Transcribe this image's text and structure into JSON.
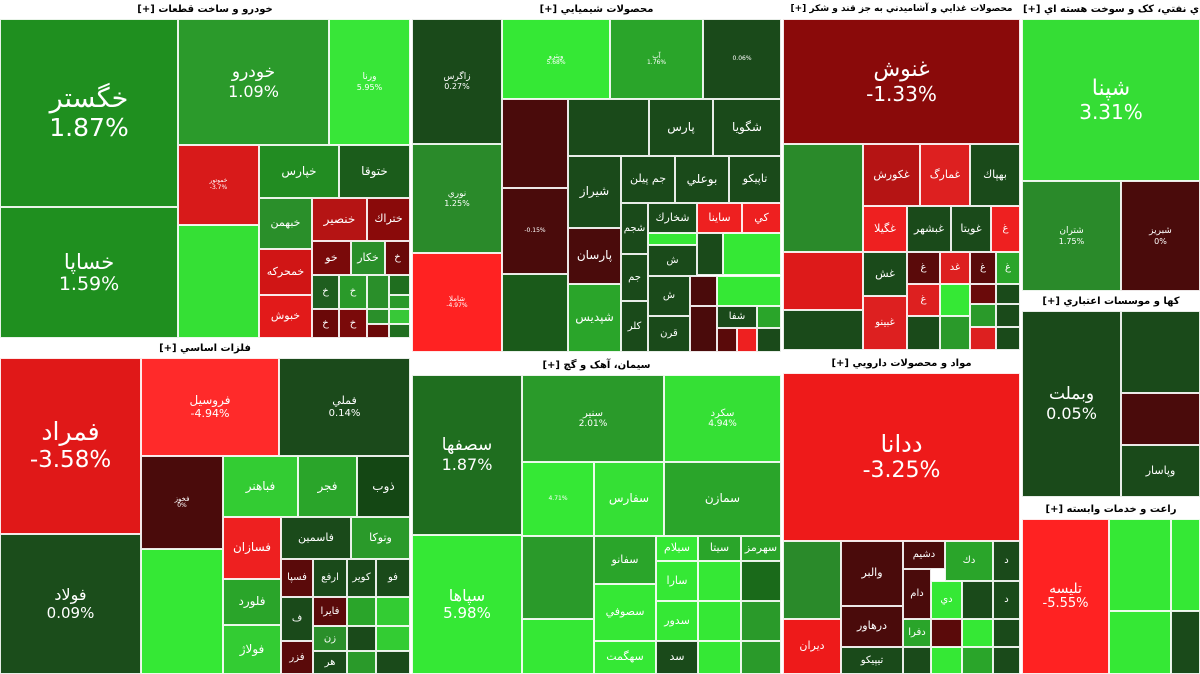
{
  "chart_data": {
    "type": "heatmap",
    "sectors": [
      {
        "title": "خودرو و ساخت قطعات",
        "expand": "[+]",
        "tiles": [
          {
            "name": "خگستر",
            "change": "1.87%",
            "color": "#1f8f1f"
          },
          {
            "name": "خساپا",
            "change": "1.59%",
            "color": "#1f8f1f"
          },
          {
            "name": "خودرو",
            "change": "1.09%",
            "color": "#2b9a2b"
          },
          {
            "name": "ورنا",
            "change": "5.95%",
            "color": "#38e638"
          },
          {
            "name": "خموتور",
            "change": "-3.7%",
            "color": "#d81a1a"
          },
          {
            "name": "خپارس",
            "color": "#228c22"
          },
          {
            "name": "ختوقا",
            "color": "#1b5c1b"
          },
          {
            "name": "خبهمن",
            "color": "#2a8f2a"
          },
          {
            "name": "خنصير",
            "color": "#b51414"
          },
          {
            "name": "ختراك",
            "color": "#8a0a0a"
          },
          {
            "color": "#35e035"
          },
          {
            "name": "خمحركه",
            "color": "#d01515"
          },
          {
            "name": "خو",
            "color": "#7a0a0a"
          },
          {
            "name": "خكار",
            "color": "#2a8f2a"
          },
          {
            "name": "خ",
            "color": "#6a0808"
          },
          {
            "name": "خبوش",
            "color": "#e21a1a"
          },
          {
            "name": "خ",
            "color": "#1f5e1f"
          },
          {
            "name": "خ",
            "color": "#2a9a2a"
          },
          {
            "color": "#2a8f2a"
          },
          {
            "color": "#1f6e1f"
          },
          {
            "color": "#2a9a2a"
          },
          {
            "name": "خ",
            "color": "#6a0808"
          },
          {
            "name": "خ",
            "color": "#7a0a0a"
          },
          {
            "color": "#2a8f2a"
          },
          {
            "color": "#38c838"
          },
          {
            "color": "#6a0808"
          },
          {
            "color": "#1f6e1f"
          }
        ]
      },
      {
        "title": "فلزات اساسي",
        "expand": "[+]",
        "tiles": [
          {
            "name": "فمراد",
            "change": "-3.58%",
            "color": "#e01818"
          },
          {
            "name": "فولاد",
            "change": "0.09%",
            "color": "#1b4d1b"
          },
          {
            "name": "فروسيل",
            "change": "-4.94%",
            "color": "#ff2a2a"
          },
          {
            "name": "فملي",
            "change": "0.14%",
            "color": "#1b4a1b"
          },
          {
            "name": "فخوز",
            "change": "0%",
            "color": "#4a0b0b"
          },
          {
            "name": "فباهنر",
            "color": "#33cc33"
          },
          {
            "name": "فجر",
            "color": "#2aa52a"
          },
          {
            "name": "ذوب",
            "color": "#144714"
          },
          {
            "name": "فسازان",
            "color": "#ee2020"
          },
          {
            "name": "فاسمين",
            "color": "#1a4a1a"
          },
          {
            "name": "وتوكا",
            "color": "#2a9a2a"
          },
          {
            "color": "#35e835"
          },
          {
            "name": "فلورد",
            "color": "#2aa52a"
          },
          {
            "name": "فولاژ",
            "color": "#33cc33"
          },
          {
            "name": "فسپا",
            "color": "#5a0a0a"
          },
          {
            "name": "ارفع",
            "color": "#1a4a1a"
          },
          {
            "name": "كوير",
            "color": "#1a4a1a"
          },
          {
            "name": "فو",
            "color": "#1a4a1a"
          },
          {
            "name": "ف",
            "color": "#1a4a1a"
          },
          {
            "name": "فايرا",
            "color": "#5a0a0a"
          },
          {
            "color": "#2aa52a"
          },
          {
            "color": "#33cc33"
          },
          {
            "name": "زن",
            "color": "#2a8f2a"
          },
          {
            "color": "#1a4a1a"
          },
          {
            "color": "#33cc33"
          },
          {
            "name": "فزر",
            "color": "#5a0a0a"
          },
          {
            "name": "هر",
            "color": "#1a4a1a"
          },
          {
            "color": "#2a9a2a"
          },
          {
            "color": "#1a4a1a"
          }
        ]
      },
      {
        "title": "محصولات شيميايي",
        "expand": "[+]",
        "tiles": [
          {
            "name": "زاگرس",
            "change": "0.27%",
            "color": "#1a4a1a"
          },
          {
            "name": "نوري",
            "change": "1.25%",
            "color": "#2a8a2a"
          },
          {
            "name": "شاملا",
            "change": "-4.97%",
            "color": "#ff2222"
          },
          {
            "name": "وپترو",
            "change": "5.68%",
            "color": "#35e835"
          },
          {
            "name": "آپ",
            "change": "1.76%",
            "color": "#2aa52a"
          },
          {
            "change": "0.06%",
            "color": "#1a4a1a"
          },
          {
            "color": "#4a0b0b"
          },
          {
            "color": "#1a4a1a"
          },
          {
            "name": "پارس",
            "color": "#1a4a1a"
          },
          {
            "name": "شگويا",
            "color": "#1a4a1a"
          },
          {
            "name": "شيراز",
            "color": "#1a4a1a"
          },
          {
            "name": "جم پيلن",
            "color": "#1a4a1a"
          },
          {
            "name": "بوعلي",
            "color": "#1a4a1a"
          },
          {
            "name": "تاپيكو",
            "color": "#1a4a1a"
          },
          {
            "change": "-0.15%",
            "color": "#4a0b0b"
          },
          {
            "name": "شجم",
            "color": "#1a4a1a"
          },
          {
            "name": "شخارك",
            "color": "#1a4a1a"
          },
          {
            "name": "ساينا",
            "color": "#ee2020"
          },
          {
            "name": "كي",
            "color": "#ee2020"
          },
          {
            "name": "پارسان",
            "color": "#4a0b0b"
          },
          {
            "color": "#35e835"
          },
          {
            "color": "#1a4a1a"
          },
          {
            "color": "#35e835"
          },
          {
            "name": "ش",
            "color": "#1a4a1a"
          },
          {
            "name": "جم",
            "color": "#1a4a1a"
          },
          {
            "color": "#1a5a1a"
          },
          {
            "name": "شپديس",
            "color": "#2aa52a"
          },
          {
            "name": "ش",
            "color": "#1a4a1a"
          },
          {
            "color": "#4a0b0b"
          },
          {
            "color": "#35e835"
          },
          {
            "name": "كلر",
            "color": "#1a4a1a"
          },
          {
            "name": "قرن",
            "color": "#1a4a1a"
          },
          {
            "color": "#4a0b0b"
          },
          {
            "name": "شفا",
            "color": "#1a4a1a"
          },
          {
            "color": "#2aa52a"
          },
          {
            "color": "#5a0a0a"
          },
          {
            "color": "#ee2020"
          },
          {
            "color": "#1a4a1a"
          }
        ]
      },
      {
        "title": "سيمان، آهک و گچ",
        "expand": "[+]",
        "tiles": [
          {
            "name": "سصفها",
            "change": "1.87%",
            "color": "#1f6e1f"
          },
          {
            "name": "سپاها",
            "change": "5.98%",
            "color": "#35e835"
          },
          {
            "name": "سنير",
            "change": "2.01%",
            "color": "#2a9a2a"
          },
          {
            "name": "سكرد",
            "change": "4.94%",
            "color": "#35e035"
          },
          {
            "change": "4.71%",
            "color": "#35e835"
          },
          {
            "name": "سفارس",
            "color": "#35e035"
          },
          {
            "name": "سمازن",
            "color": "#2aa52a"
          },
          {
            "color": "#2a9a2a"
          },
          {
            "name": "سفانو",
            "color": "#2aa52a"
          },
          {
            "name": "سيلام",
            "color": "#35e835"
          },
          {
            "name": "سيتا",
            "color": "#2aa52a"
          },
          {
            "name": "سهرمز",
            "color": "#2aa52a"
          },
          {
            "name": "سارا",
            "color": "#35e835"
          },
          {
            "color": "#35e835"
          },
          {
            "color": "#1a6a1a"
          },
          {
            "name": "سصوفي",
            "color": "#35e835"
          },
          {
            "name": "سدور",
            "color": "#35e835"
          },
          {
            "color": "#35e835"
          },
          {
            "color": "#2a9a2a"
          },
          {
            "color": "#35e835"
          },
          {
            "name": "سهگمت",
            "color": "#35e835"
          },
          {
            "name": "سد",
            "color": "#1a4a1a"
          },
          {
            "color": "#35e835"
          },
          {
            "color": "#2a9a2a"
          }
        ]
      },
      {
        "title": "محصولات غذايي و آشاميدني به جز قند و شکر",
        "expand": "[+]",
        "tiles": [
          {
            "name": "غنوش",
            "change": "-1.33%",
            "color": "#8a0a0a"
          },
          {
            "color": "#2a8a2a"
          },
          {
            "name": "غكورش",
            "color": "#b51414"
          },
          {
            "name": "غمارگ",
            "color": "#dd2020"
          },
          {
            "name": "بهپاك",
            "color": "#1a4a1a"
          },
          {
            "name": "غگيلا",
            "color": "#ee2020"
          },
          {
            "name": "غبشهر",
            "color": "#1a4a1a"
          },
          {
            "name": "غويتا",
            "color": "#1a4a1a"
          },
          {
            "name": "غ",
            "color": "#ee2020"
          },
          {
            "color": "#dd1a1a"
          },
          {
            "name": "غش",
            "color": "#1a4a1a"
          },
          {
            "name": "غ",
            "color": "#5a0a0a"
          },
          {
            "name": "غد",
            "color": "#dd2020"
          },
          {
            "name": "غ",
            "color": "#5a0a0a"
          },
          {
            "name": "غ",
            "color": "#2aa52a"
          },
          {
            "color": "#1a4a1a"
          },
          {
            "name": "غبينو",
            "color": "#dd2020"
          },
          {
            "name": "غ",
            "color": "#dd2020"
          },
          {
            "color": "#35e835"
          },
          {
            "color": "#6a0a0a"
          },
          {
            "color": "#1a4a1a"
          },
          {
            "color": "#1a4a1a"
          },
          {
            "color": "#2a9a2a"
          },
          {
            "color": "#2a9a2a"
          },
          {
            "color": "#1a4a1a"
          },
          {
            "color": "#dd2020"
          },
          {
            "color": "#1a4a1a"
          }
        ]
      },
      {
        "title": "مواد و محصولات دارويي",
        "expand": "[+]",
        "tiles": [
          {
            "name": "ددانا",
            "change": "-3.25%",
            "color": "#ee1a1a"
          },
          {
            "color": "#2a8a2a"
          },
          {
            "name": "والبر",
            "color": "#4a0b0b"
          },
          {
            "name": "دشيم",
            "color": "#4a0b0b"
          },
          {
            "name": "دك",
            "color": "#2aa52a"
          },
          {
            "name": "د",
            "color": "#1a4a1a"
          },
          {
            "name": "دام",
            "color": "#4a0b0b"
          },
          {
            "name": "دي",
            "color": "#35e835"
          },
          {
            "color": "#1a4a1a"
          },
          {
            "name": "د",
            "color": "#1a4a1a"
          },
          {
            "name": "ديران",
            "color": "#ee1a1a"
          },
          {
            "name": "درهاور",
            "color": "#4a0b0b"
          },
          {
            "name": "دفرا",
            "color": "#2aa52a"
          },
          {
            "color": "#5a0a0a"
          },
          {
            "color": "#35e835"
          },
          {
            "color": "#1a4a1a"
          },
          {
            "name": "تيپيكو",
            "color": "#1a4a1a"
          },
          {
            "color": "#1a4a1a"
          },
          {
            "color": "#35e835"
          },
          {
            "color": "#2aa52a"
          },
          {
            "color": "#1a4a1a"
          }
        ]
      },
      {
        "title": "ي نفتي، کک و سوخت هسته اي",
        "expand": "[+]",
        "tiles": [
          {
            "name": "شپنا",
            "change": "3.31%",
            "color": "#35dd35"
          },
          {
            "name": "شتران",
            "change": "1.75%",
            "color": "#2a8a2a"
          },
          {
            "name": "شبريز",
            "change": "0%",
            "color": "#4a0b0b"
          }
        ]
      },
      {
        "title": "كها و موسسات اعتباري",
        "expand": "[+]",
        "tiles": [
          {
            "name": "وبملت",
            "change": "0.05%",
            "color": "#1a4a1a"
          },
          {
            "color": "#1a4a1a"
          },
          {
            "color": "#4a0b0b"
          },
          {
            "name": "وپاسار",
            "color": "#1a4a1a"
          }
        ]
      },
      {
        "title": "راعت و خدمات وابسته",
        "expand": "[+]",
        "tiles": [
          {
            "name": "تليسه",
            "change": "-5.55%",
            "color": "#ff2222"
          },
          {
            "color": "#35e835"
          },
          {
            "color": "#35e835"
          },
          {
            "color": "#35e835"
          },
          {
            "color": "#1a4a1a"
          }
        ]
      }
    ]
  }
}
